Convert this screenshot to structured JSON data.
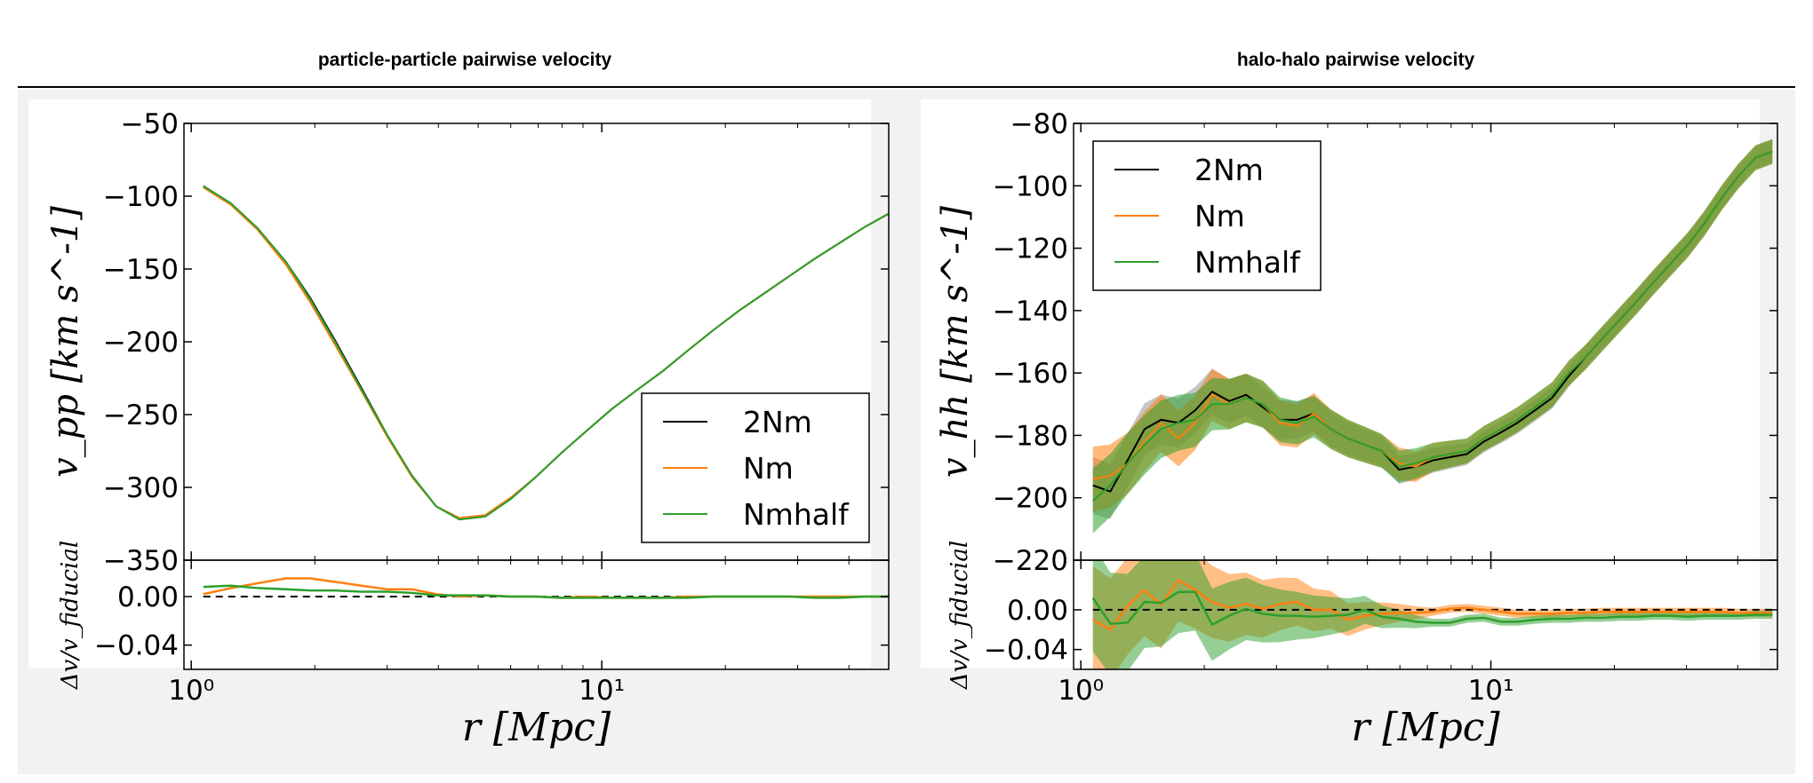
{
  "header": {
    "left_title": "particle-particle pairwise velocity",
    "right_title": "halo-halo pairwise velocity"
  },
  "colors": {
    "2Nm": "#000000",
    "Nm": "#ff7f0e",
    "Nmhalf": "#2ca02c",
    "Nm_band": "#ff7f0e",
    "Nmhalf_band": "#2ca02c",
    "2Nm_band": "#808080"
  },
  "chart_data": [
    {
      "type": "line",
      "title": "particle-particle pairwise velocity",
      "xlabel": "r [Mpc]",
      "ylabel": "v_pp [km s^-1]",
      "ratio_ylabel": "Δv/v_fiducial",
      "xscale": "log",
      "xlim": [
        0.96,
        50
      ],
      "ylim": [
        -350,
        -50
      ],
      "ratio_ylim": [
        -0.06,
        0.03
      ],
      "yticks": [
        "−50",
        "−100",
        "−150",
        "−200",
        "−250",
        "−300",
        "−350"
      ],
      "ratio_yticks": [
        "0.00",
        "−0.04"
      ],
      "xticks": [
        "10⁰",
        "10¹"
      ],
      "legend": {
        "placement": "lower-right",
        "entries": [
          "2Nm",
          "Nm",
          "Nmhalf"
        ]
      },
      "x": [
        1.07,
        1.25,
        1.45,
        1.7,
        1.95,
        2.25,
        2.6,
        3.0,
        3.45,
        3.95,
        4.5,
        5.2,
        6.0,
        6.9,
        8.0,
        9.2,
        10.6,
        12.2,
        14.1,
        16.2,
        18.7,
        21.5,
        24.8,
        28.6,
        33.0,
        38.0,
        43.8,
        50.0
      ],
      "series": [
        {
          "name": "2Nm",
          "values": [
            -93,
            -105,
            -122,
            -145,
            -170,
            -200,
            -232,
            -264,
            -292,
            -313,
            -322,
            -320,
            -308,
            -293,
            -276,
            -261,
            -246,
            -233,
            -220,
            -206,
            -192,
            -179,
            -167,
            -155,
            -143,
            -132,
            -121,
            -112
          ]
        },
        {
          "name": "Nm",
          "values": [
            -94,
            -106,
            -123,
            -147,
            -173,
            -203,
            -234,
            -265,
            -293,
            -313,
            -321,
            -319,
            -307,
            -293,
            -276,
            -261,
            -246,
            -233,
            -220,
            -206,
            -192,
            -179,
            -167,
            -155,
            -143,
            -132,
            -121,
            -112
          ]
        },
        {
          "name": "Nmhalf",
          "values": [
            -93,
            -105,
            -122,
            -145,
            -171,
            -201,
            -233,
            -264,
            -292,
            -313,
            -322,
            -320,
            -308,
            -293,
            -276,
            -261,
            -246,
            -233,
            -220,
            -206,
            -192,
            -179,
            -167,
            -155,
            -143,
            -132,
            -121,
            -112
          ]
        }
      ],
      "ratio_series": [
        {
          "name": "Nm",
          "values": [
            0.002,
            0.007,
            0.011,
            0.015,
            0.015,
            0.012,
            0.009,
            0.006,
            0.006,
            0.002,
            0.0,
            0.001,
            0.0,
            0.0,
            -0.001,
            0.0,
            -0.001,
            -0.001,
            -0.001,
            0.0,
            0.0,
            0.0,
            0.0,
            0.0,
            0.0,
            0.0,
            0.0,
            0.0
          ]
        },
        {
          "name": "Nmhalf",
          "values": [
            0.008,
            0.009,
            0.007,
            0.006,
            0.005,
            0.005,
            0.004,
            0.004,
            0.003,
            0.001,
            0.001,
            0.001,
            0.0,
            0.0,
            -0.001,
            -0.001,
            -0.001,
            -0.001,
            -0.001,
            -0.001,
            0.0,
            0.0,
            0.0,
            0.0,
            -0.001,
            -0.001,
            0.0,
            0.0
          ]
        }
      ]
    },
    {
      "type": "line",
      "title": "halo-halo pairwise velocity",
      "xlabel": "r [Mpc]",
      "ylabel": "v_hh [km s^-1]",
      "ratio_ylabel": "Δv/v_fiducial",
      "xscale": "log",
      "xlim": [
        0.96,
        50
      ],
      "ylim": [
        -220,
        -80
      ],
      "ratio_ylim": [
        -0.06,
        0.05
      ],
      "yticks": [
        "−80",
        "−100",
        "−120",
        "−140",
        "−160",
        "−180",
        "−200",
        "−220"
      ],
      "ratio_yticks": [
        "0.00",
        "−0.04"
      ],
      "xticks": [
        "10⁰",
        "10¹"
      ],
      "legend": {
        "placement": "upper-left",
        "entries": [
          "2Nm",
          "Nm",
          "Nmhalf"
        ]
      },
      "x": [
        1.07,
        1.18,
        1.3,
        1.43,
        1.57,
        1.73,
        1.9,
        2.09,
        2.3,
        2.53,
        2.78,
        3.06,
        3.37,
        3.7,
        4.07,
        4.48,
        4.93,
        5.42,
        5.97,
        6.56,
        7.22,
        7.94,
        8.74,
        9.61,
        10.6,
        11.6,
        12.8,
        14.1,
        15.5,
        17.0,
        18.7,
        20.6,
        22.7,
        24.9,
        27.4,
        30.2,
        33.2,
        36.5,
        40.1,
        44.2,
        48.6
      ],
      "series": [
        {
          "name": "2Nm",
          "values": [
            -196,
            -198,
            -188,
            -178,
            -175,
            -176,
            -172,
            -166,
            -169,
            -167,
            -171,
            -175,
            -175,
            -173,
            -178,
            -181,
            -183,
            -185,
            -191,
            -190,
            -188,
            -187,
            -186,
            -182,
            -179,
            -176,
            -172,
            -168,
            -161,
            -155,
            -149,
            -143,
            -137,
            -131,
            -125,
            -119,
            -112,
            -104,
            -97,
            -91,
            -89
          ]
        },
        {
          "name": "Nm",
          "values": [
            -194,
            -193,
            -189,
            -182,
            -176,
            -181,
            -176,
            -167,
            -170,
            -168,
            -170,
            -176,
            -177,
            -173,
            -178,
            -181,
            -183,
            -185,
            -189,
            -190,
            -187,
            -186,
            -185,
            -181,
            -178,
            -175,
            -171,
            -167,
            -160,
            -155,
            -149,
            -143,
            -137,
            -131,
            -125,
            -119,
            -112,
            -104,
            -97,
            -91,
            -89
          ]
        },
        {
          "name": "Nmhalf",
          "values": [
            -201,
            -196,
            -189,
            -183,
            -178,
            -176,
            -175,
            -170,
            -170,
            -168,
            -170,
            -175,
            -176,
            -174,
            -178,
            -181,
            -183,
            -185,
            -190,
            -189,
            -187,
            -186,
            -185,
            -181,
            -178,
            -175,
            -171,
            -167,
            -160,
            -155,
            -149,
            -143,
            -137,
            -131,
            -125,
            -119,
            -112,
            -104,
            -97,
            -91,
            -89
          ]
        }
      ],
      "ratio_series": [
        {
          "name": "Nm",
          "values": [
            -0.01,
            -0.02,
            0.004,
            0.02,
            0.005,
            0.03,
            0.02,
            0.008,
            0.002,
            0.006,
            0.001,
            0.006,
            0.008,
            0.0,
            0.0,
            -0.01,
            -0.006,
            -0.004,
            -0.003,
            -0.003,
            -0.002,
            0.001,
            0.002,
            0.0,
            -0.002,
            -0.004,
            -0.004,
            -0.004,
            -0.003,
            -0.003,
            -0.002,
            -0.002,
            -0.002,
            -0.002,
            -0.002,
            -0.002,
            -0.002,
            -0.002,
            -0.003,
            -0.003,
            -0.003
          ]
        },
        {
          "name": "Nmhalf",
          "values": [
            0.012,
            -0.014,
            -0.013,
            0.008,
            0.007,
            0.018,
            0.018,
            -0.015,
            -0.006,
            0.001,
            -0.004,
            -0.006,
            -0.006,
            -0.007,
            -0.006,
            -0.005,
            0.0,
            -0.007,
            -0.009,
            -0.012,
            -0.013,
            -0.013,
            -0.009,
            -0.008,
            -0.012,
            -0.012,
            -0.01,
            -0.009,
            -0.009,
            -0.008,
            -0.008,
            -0.007,
            -0.007,
            -0.006,
            -0.006,
            -0.007,
            -0.006,
            -0.006,
            -0.006,
            -0.005,
            -0.005
          ]
        }
      ]
    }
  ]
}
